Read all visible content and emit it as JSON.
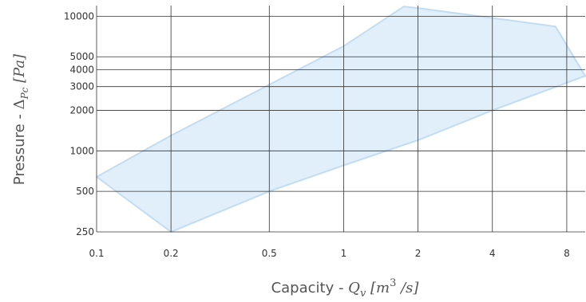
{
  "chart_data": {
    "type": "area",
    "x_scale": "log",
    "y_scale": "log",
    "xlim": [
      0.1,
      9.5
    ],
    "ylim": [
      250,
      12000
    ],
    "grid": true,
    "xlabel": {
      "prefix": "Capacity - ",
      "var": "Q",
      "sub": "v",
      "unit_open": " [m",
      "unit_sup": "3",
      "unit_close": " /s]"
    },
    "ylabel": {
      "prefix": "Pressure - ",
      "var": "Δ",
      "sub": "Pc",
      "unit": " [Pa]"
    },
    "x_ticks": [
      {
        "value": 0.1,
        "label": "0.1"
      },
      {
        "value": 0.2,
        "label": "0.2"
      },
      {
        "value": 0.5,
        "label": "0.5"
      },
      {
        "value": 1,
        "label": "1"
      },
      {
        "value": 2,
        "label": "2"
      },
      {
        "value": 4,
        "label": "4"
      },
      {
        "value": 8,
        "label": "8"
      }
    ],
    "y_ticks": [
      {
        "value": 250,
        "label": "250"
      },
      {
        "value": 500,
        "label": "500"
      },
      {
        "value": 1000,
        "label": "1000"
      },
      {
        "value": 2000,
        "label": "2000"
      },
      {
        "value": 3000,
        "label": "3000"
      },
      {
        "value": 4000,
        "label": "4000"
      },
      {
        "value": 5000,
        "label": "5000"
      },
      {
        "value": 10000,
        "label": "10000"
      }
    ],
    "region": {
      "fill": "#dcecf9",
      "stroke": "#c2dcf2",
      "points": [
        {
          "x": 0.1,
          "y": 640
        },
        {
          "x": 0.2,
          "y": 250
        },
        {
          "x": 0.5,
          "y": 500
        },
        {
          "x": 1.0,
          "y": 780
        },
        {
          "x": 2.0,
          "y": 1200
        },
        {
          "x": 4.0,
          "y": 2000
        },
        {
          "x": 9.5,
          "y": 3600
        },
        {
          "x": 7.2,
          "y": 8400
        },
        {
          "x": 2.0,
          "y": 11500
        },
        {
          "x": 1.75,
          "y": 11800
        },
        {
          "x": 1.0,
          "y": 6000
        },
        {
          "x": 0.5,
          "y": 3100
        },
        {
          "x": 0.2,
          "y": 1300
        },
        {
          "x": 0.1,
          "y": 640
        }
      ]
    }
  }
}
